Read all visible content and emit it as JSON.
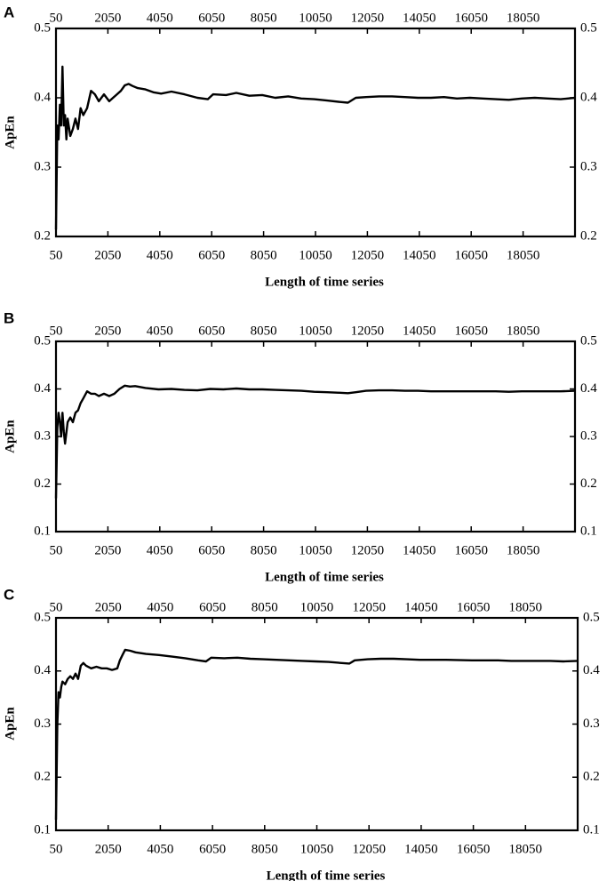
{
  "chart_data": [
    {
      "panel": "A",
      "type": "line",
      "xlabel": "Length of time series",
      "ylabel": "ApEn",
      "ylim": [
        0.2,
        0.5
      ],
      "yticks": [
        "0.2",
        "0.3",
        "0.4",
        "0.5"
      ],
      "xlim": [
        50,
        20050
      ],
      "xticks": [
        "50",
        "2050",
        "4050",
        "6050",
        "8050",
        "10050",
        "12050",
        "14050",
        "16050",
        "18050"
      ],
      "grid": false,
      "series": [
        {
          "x": [
            50,
            100,
            150,
            200,
            250,
            300,
            350,
            400,
            450,
            500,
            600,
            700,
            800,
            900,
            1000,
            1100,
            1250,
            1400,
            1550,
            1700,
            1900,
            2100,
            2250,
            2400,
            2550,
            2700,
            2850,
            3000,
            3200,
            3500,
            3800,
            4100,
            4500,
            5000,
            5500,
            5900,
            6100,
            6600,
            7000,
            7500,
            8000,
            8500,
            9000,
            9500,
            10000,
            10500,
            11000,
            11300,
            11600,
            12000,
            12500,
            13000,
            13500,
            14000,
            14500,
            15000,
            15500,
            16000,
            16500,
            17000,
            17500,
            18000,
            18500,
            19000,
            19500,
            20050
          ],
          "y": [
            0.21,
            0.36,
            0.34,
            0.39,
            0.36,
            0.445,
            0.36,
            0.375,
            0.34,
            0.37,
            0.345,
            0.355,
            0.37,
            0.355,
            0.385,
            0.375,
            0.385,
            0.41,
            0.405,
            0.395,
            0.405,
            0.395,
            0.4,
            0.405,
            0.41,
            0.418,
            0.42,
            0.417,
            0.414,
            0.412,
            0.408,
            0.406,
            0.409,
            0.405,
            0.4,
            0.398,
            0.405,
            0.404,
            0.407,
            0.403,
            0.404,
            0.4,
            0.402,
            0.399,
            0.398,
            0.396,
            0.394,
            0.393,
            0.4,
            0.401,
            0.402,
            0.402,
            0.401,
            0.4,
            0.4,
            0.401,
            0.399,
            0.4,
            0.399,
            0.398,
            0.397,
            0.399,
            0.4,
            0.399,
            0.398,
            0.4
          ]
        }
      ]
    },
    {
      "panel": "B",
      "type": "line",
      "xlabel": "Length of time series",
      "ylabel": "ApEn",
      "ylim": [
        0.1,
        0.5
      ],
      "yticks": [
        "0.1",
        "0.2",
        "0.3",
        "0.4",
        "0.5"
      ],
      "xlim": [
        50,
        20050
      ],
      "xticks": [
        "50",
        "2050",
        "4050",
        "6050",
        "8050",
        "10050",
        "12050",
        "14050",
        "16050",
        "18050"
      ],
      "grid": false,
      "series": [
        {
          "x": [
            50,
            100,
            150,
            200,
            250,
            300,
            350,
            400,
            500,
            600,
            700,
            800,
            900,
            1000,
            1100,
            1250,
            1400,
            1550,
            1700,
            1900,
            2100,
            2300,
            2500,
            2700,
            2900,
            3100,
            3500,
            4000,
            4500,
            5000,
            5500,
            6000,
            6500,
            7000,
            7500,
            8000,
            8500,
            9000,
            9500,
            10000,
            10500,
            11000,
            11300,
            11600,
            12000,
            12500,
            13000,
            13500,
            14000,
            14500,
            15000,
            16000,
            17000,
            17500,
            18000,
            18500,
            19000,
            19500,
            20050
          ],
          "y": [
            0.17,
            0.32,
            0.35,
            0.33,
            0.3,
            0.35,
            0.31,
            0.285,
            0.33,
            0.34,
            0.33,
            0.35,
            0.355,
            0.37,
            0.38,
            0.395,
            0.39,
            0.39,
            0.385,
            0.39,
            0.385,
            0.39,
            0.4,
            0.407,
            0.405,
            0.406,
            0.402,
            0.399,
            0.4,
            0.398,
            0.397,
            0.4,
            0.399,
            0.401,
            0.399,
            0.399,
            0.398,
            0.397,
            0.396,
            0.394,
            0.393,
            0.392,
            0.391,
            0.393,
            0.396,
            0.397,
            0.397,
            0.396,
            0.396,
            0.395,
            0.395,
            0.395,
            0.395,
            0.394,
            0.395,
            0.395,
            0.395,
            0.395,
            0.396
          ]
        }
      ]
    },
    {
      "panel": "C",
      "type": "line",
      "xlabel": "Length of time series",
      "ylabel": "ApEn",
      "ylim": [
        0.1,
        0.5
      ],
      "yticks": [
        "0.1",
        "0.2",
        "0.3",
        "0.4",
        "0.5"
      ],
      "xlim": [
        50,
        20050
      ],
      "xticks": [
        "50",
        "2050",
        "4050",
        "6050",
        "8050",
        "10050",
        "12050",
        "14050",
        "16050",
        "18050"
      ],
      "grid": false,
      "series": [
        {
          "x": [
            50,
            100,
            150,
            200,
            250,
            300,
            400,
            500,
            600,
            700,
            800,
            900,
            1000,
            1100,
            1200,
            1400,
            1600,
            1800,
            2000,
            2200,
            2400,
            2500,
            2600,
            2700,
            2900,
            3100,
            3500,
            4000,
            4500,
            5000,
            5500,
            5800,
            6000,
            6500,
            7000,
            7500,
            8000,
            8500,
            9000,
            9500,
            10000,
            10500,
            11000,
            11300,
            11500,
            12000,
            12500,
            13000,
            13500,
            14000,
            15000,
            16000,
            17000,
            17500,
            18000,
            18500,
            19000,
            19500,
            20050
          ],
          "y": [
            0.12,
            0.3,
            0.36,
            0.35,
            0.37,
            0.38,
            0.375,
            0.385,
            0.39,
            0.385,
            0.395,
            0.385,
            0.41,
            0.415,
            0.41,
            0.405,
            0.408,
            0.405,
            0.405,
            0.402,
            0.405,
            0.42,
            0.43,
            0.44,
            0.438,
            0.435,
            0.432,
            0.43,
            0.427,
            0.424,
            0.42,
            0.418,
            0.425,
            0.424,
            0.425,
            0.423,
            0.422,
            0.421,
            0.42,
            0.419,
            0.418,
            0.417,
            0.415,
            0.414,
            0.42,
            0.422,
            0.423,
            0.423,
            0.422,
            0.421,
            0.421,
            0.42,
            0.42,
            0.419,
            0.419,
            0.419,
            0.419,
            0.418,
            0.419
          ]
        }
      ]
    }
  ],
  "panels": [
    {
      "label": "A"
    },
    {
      "label": "B"
    },
    {
      "label": "C"
    }
  ]
}
